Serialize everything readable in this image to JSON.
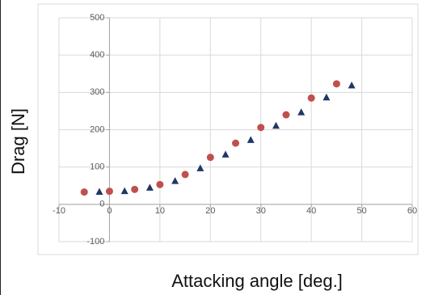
{
  "chart_data": {
    "type": "scatter",
    "title": "",
    "xlabel": "Attacking angle [deg.]",
    "ylabel": "Drag [N]",
    "xlim": [
      -10,
      60
    ],
    "ylim": [
      -100,
      500
    ],
    "x_ticks": [
      "-10",
      "0",
      "10",
      "20",
      "30",
      "40",
      "50",
      "60"
    ],
    "y_ticks": [
      "-100",
      "0",
      "100",
      "200",
      "300",
      "400",
      "500"
    ],
    "grid": true,
    "legend": "none",
    "series": [
      {
        "marker": "circle",
        "color": "#c0504d",
        "points": [
          {
            "x": -5,
            "y": 33
          },
          {
            "x": 0,
            "y": 35
          },
          {
            "x": 5,
            "y": 40
          },
          {
            "x": 10,
            "y": 53
          },
          {
            "x": 15,
            "y": 80
          },
          {
            "x": 20,
            "y": 126
          },
          {
            "x": 25,
            "y": 164
          },
          {
            "x": 30,
            "y": 206
          },
          {
            "x": 35,
            "y": 240
          },
          {
            "x": 40,
            "y": 285
          },
          {
            "x": 45,
            "y": 323
          }
        ]
      },
      {
        "marker": "triangle",
        "color": "#1f3864",
        "points": [
          {
            "x": -2,
            "y": 33
          },
          {
            "x": 3,
            "y": 35
          },
          {
            "x": 8,
            "y": 44
          },
          {
            "x": 13,
            "y": 62
          },
          {
            "x": 18,
            "y": 96
          },
          {
            "x": 23,
            "y": 133
          },
          {
            "x": 28,
            "y": 172
          },
          {
            "x": 33,
            "y": 210
          },
          {
            "x": 38,
            "y": 246
          },
          {
            "x": 43,
            "y": 286
          },
          {
            "x": 48,
            "y": 318
          }
        ]
      }
    ]
  }
}
